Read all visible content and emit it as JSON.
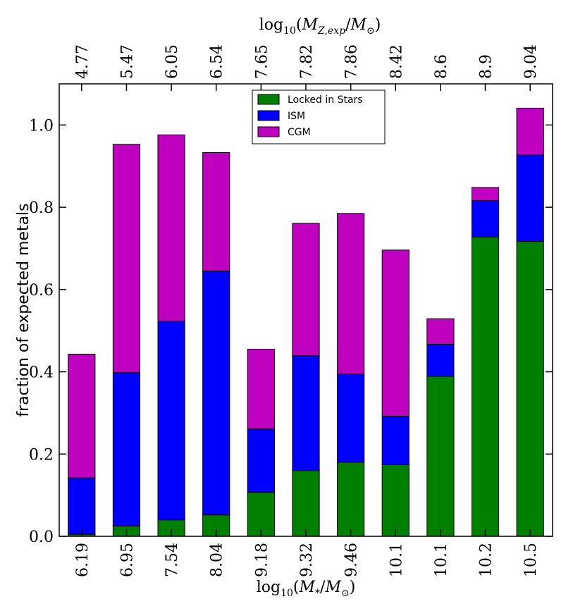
{
  "chart_data": {
    "type": "bar",
    "stacked": true,
    "categories": [
      "6.19",
      "6.95",
      "7.54",
      "8.04",
      "9.18",
      "9.32",
      "9.46",
      "10.1",
      "10.1",
      "10.2",
      "10.5"
    ],
    "top_categories": [
      "4.77",
      "5.47",
      "6.05",
      "6.54",
      "7.65",
      "7.82",
      "7.86",
      "8.42",
      "8.6",
      "8.9",
      "9.04"
    ],
    "series": [
      {
        "name": "Locked in Stars",
        "color": "#008000",
        "values": [
          0.005,
          0.025,
          0.04,
          0.052,
          0.107,
          0.16,
          0.18,
          0.174,
          0.389,
          0.728,
          0.717
        ]
      },
      {
        "name": "ISM",
        "color": "#0000ff",
        "values": [
          0.137,
          0.373,
          0.483,
          0.593,
          0.154,
          0.279,
          0.214,
          0.118,
          0.078,
          0.088,
          0.21
        ]
      },
      {
        "name": "CGM",
        "color": "#bf00bf",
        "values": [
          0.301,
          0.555,
          0.453,
          0.288,
          0.194,
          0.322,
          0.391,
          0.404,
          0.062,
          0.032,
          0.114
        ]
      }
    ],
    "xlabel": "log10(M*/M⊙)",
    "xlabel_parts": {
      "prefix": "log",
      "sub": "10",
      "open": "(",
      "main": "M",
      "main_sub": "*",
      "slash": "/",
      "denom": "M",
      "denom_sub": "⊙",
      "close": ")"
    },
    "top_xlabel": "log10(MZ,exp/M⊙)",
    "top_xlabel_parts": {
      "prefix": "log",
      "sub": "10",
      "open": "(",
      "main": "M",
      "main_sub": "Z,exp",
      "slash": "/",
      "denom": "M",
      "denom_sub": "⊙",
      "close": ")"
    },
    "ylabel": "fraction of expected metals",
    "ylim": [
      0,
      1.1
    ],
    "yticks": [
      "0.0",
      "0.2",
      "0.4",
      "0.6",
      "0.8",
      "1.0"
    ],
    "ytick_values": [
      0,
      0.2,
      0.4,
      0.6,
      0.8,
      1.0
    ],
    "legend": {
      "position": "top-center",
      "entries": [
        "Locked in Stars",
        "ISM",
        "CGM"
      ]
    },
    "grid": false
  }
}
